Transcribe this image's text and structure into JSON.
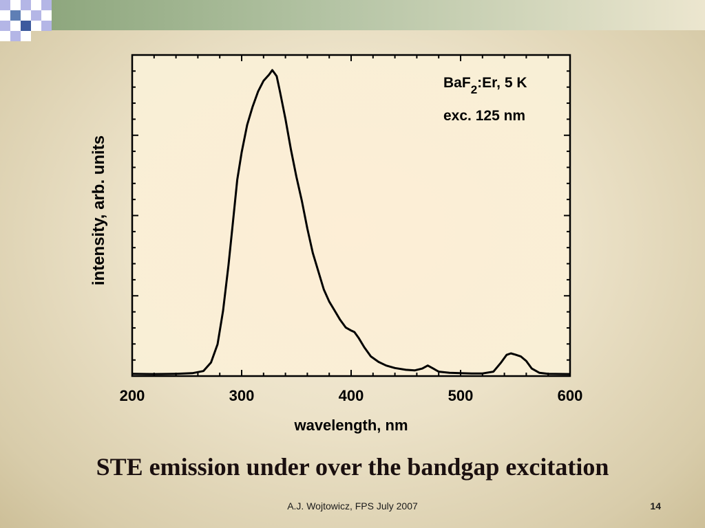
{
  "chart_data": {
    "type": "line",
    "title": "",
    "xlabel": "wavelength, nm",
    "ylabel": "intensity, arb. units",
    "xlim": [
      200,
      600
    ],
    "ylim": [
      0,
      1.0
    ],
    "xticks": [
      "200",
      "300",
      "400",
      "500",
      "600"
    ],
    "annotations": [
      {
        "parts": [
          "BaF",
          "2",
          ":Er, 5 K"
        ]
      },
      {
        "text": "exc. 125 nm"
      }
    ],
    "series": [
      {
        "x": [
          200,
          220,
          240,
          255,
          265,
          272,
          278,
          283,
          288,
          292,
          296,
          300,
          305,
          310,
          315,
          320,
          325,
          328,
          330,
          332,
          335,
          340,
          345,
          350,
          355,
          360,
          365,
          370,
          375,
          380,
          385,
          390,
          395,
          400,
          403,
          407,
          412,
          418,
          425,
          432,
          440,
          450,
          458,
          465,
          470,
          475,
          480,
          490,
          500,
          510,
          520,
          530,
          537,
          542,
          546,
          550,
          555,
          560,
          565,
          572,
          580,
          600
        ],
        "y": [
          0.003,
          0.002,
          0.003,
          0.005,
          0.012,
          0.04,
          0.1,
          0.21,
          0.36,
          0.5,
          0.64,
          0.73,
          0.82,
          0.88,
          0.93,
          0.965,
          0.985,
          1.0,
          0.99,
          0.98,
          0.93,
          0.84,
          0.74,
          0.65,
          0.57,
          0.48,
          0.4,
          0.34,
          0.28,
          0.24,
          0.21,
          0.18,
          0.155,
          0.145,
          0.14,
          0.12,
          0.09,
          0.06,
          0.042,
          0.03,
          0.022,
          0.016,
          0.014,
          0.02,
          0.03,
          0.02,
          0.01,
          0.006,
          0.005,
          0.004,
          0.004,
          0.01,
          0.04,
          0.065,
          0.07,
          0.066,
          0.06,
          0.045,
          0.02,
          0.006,
          0.003,
          0.002
        ]
      }
    ]
  },
  "caption": "STE emission under over the bandgap excitation",
  "footer": {
    "text": "A.J. Wojtowicz, FPS July 2007",
    "page": "14"
  },
  "colors": {
    "accent_blue": "#3d5a9e",
    "accent_lavender": "#b4b6e6",
    "accent_green": "#a9be9a",
    "line": "#000000"
  }
}
